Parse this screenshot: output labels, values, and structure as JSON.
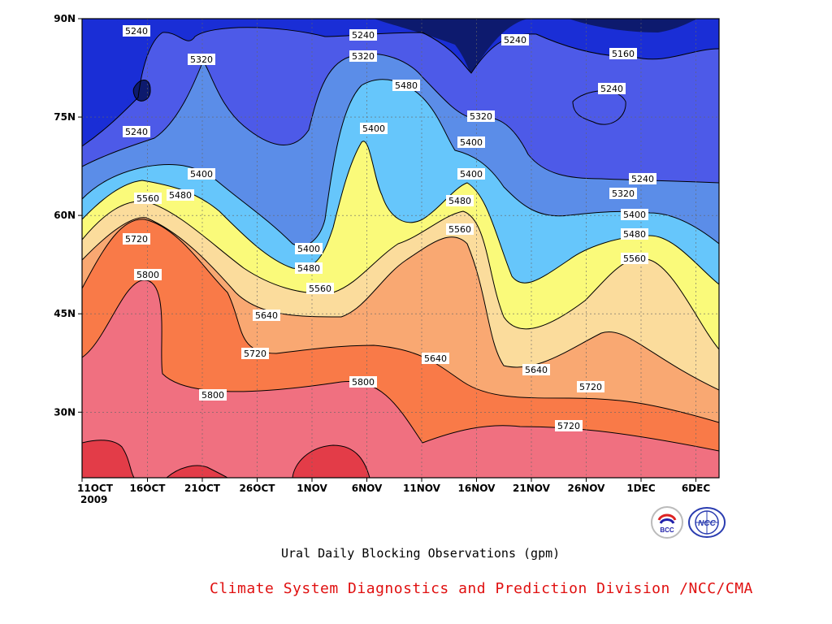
{
  "chart_data": {
    "type": "heatmap",
    "title": "Ural Daily Blocking Observations (gpm)",
    "x_ticks": [
      "11OCT",
      "16OCT",
      "21OCT",
      "26OCT",
      "1NOV",
      "6NOV",
      "11NOV",
      "16NOV",
      "21NOV",
      "26NOV",
      "1DEC",
      "6DEC"
    ],
    "x_year_label": "2009",
    "y_ticks": [
      "30N",
      "45N",
      "60N",
      "75N",
      "90N"
    ],
    "y_range": [
      20,
      90
    ],
    "contour_levels": [
      5160,
      5240,
      5320,
      5400,
      5480,
      5560,
      5640,
      5720,
      5800
    ],
    "level_colors": [
      "#0d1a6e",
      "#1a2ed6",
      "#4d5ae8",
      "#5b8de8",
      "#66c6fb",
      "#fafa7a",
      "#fbdc9c",
      "#f9a872",
      "#f97a48",
      "#f07080",
      "#e33c48"
    ],
    "contour_labels": [
      "5240",
      "5320",
      "5240",
      "5400",
      "5480",
      "5560",
      "5720",
      "5800",
      "5400",
      "5480",
      "5560",
      "5640",
      "5720",
      "5800",
      "5240",
      "5320",
      "5480",
      "5400",
      "5800",
      "5400",
      "5320",
      "5400",
      "5480",
      "5560",
      "5640",
      "5720",
      "5240",
      "5160",
      "5240",
      "5240",
      "5320",
      "5400",
      "5480",
      "5560",
      "5640",
      "5720",
      "5800"
    ],
    "grid": true
  },
  "caption": "Ural Daily Blocking Observations (gpm)",
  "credit": "Climate System Diagnostics and Prediction Division /NCC/CMA",
  "logos": {
    "bcc": "BCC",
    "ncc": "NCC"
  }
}
